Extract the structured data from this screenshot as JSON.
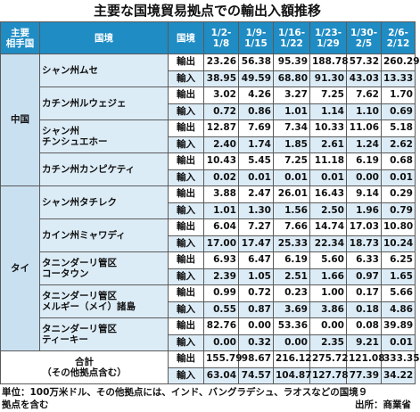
{
  "title": "主要な国境貿易拠点での輸出入額推移",
  "table": {
    "header": [
      [
        "主要",
        "相手国"
      ],
      [
        "国境"
      ],
      [
        "国境"
      ],
      [
        "1/2-",
        "1/8"
      ],
      [
        "1/9-",
        "1/15"
      ],
      [
        "1/16-",
        "1/22"
      ],
      [
        "1/23-",
        "1/29"
      ],
      [
        "1/30-",
        "2/5"
      ],
      [
        "2/6-",
        "2/12"
      ]
    ],
    "groups": [
      {
        "country": "中国",
        "sites": [
          {
            "name": [
              "シャン州ムセ"
            ],
            "rows": [
              {
                "type": "輸出",
                "values": [
                  "23.26",
                  "56.38",
                  "95.39",
                  "188.78",
                  "57.32",
                  "260.29"
                ]
              },
              {
                "type": "輸入",
                "values": [
                  "38.95",
                  "49.59",
                  "68.80",
                  "91.30",
                  "43.03",
                  "13.33"
                ]
              }
            ]
          },
          {
            "name": [
              "カチン州ルウェジェ"
            ],
            "rows": [
              {
                "type": "輸出",
                "values": [
                  "3.02",
                  "4.26",
                  "3.27",
                  "7.25",
                  "7.62",
                  "1.70"
                ]
              },
              {
                "type": "輸入",
                "values": [
                  "0.72",
                  "0.86",
                  "1.01",
                  "1.14",
                  "1.10",
                  "0.69"
                ]
              }
            ]
          },
          {
            "name": [
              "シャン州",
              "チンシュエホー"
            ],
            "rows": [
              {
                "type": "輸出",
                "values": [
                  "12.87",
                  "7.69",
                  "7.34",
                  "10.33",
                  "11.06",
                  "5.18"
                ]
              },
              {
                "type": "輸入",
                "values": [
                  "2.40",
                  "1.74",
                  "1.85",
                  "2.61",
                  "1.24",
                  "2.62"
                ]
              }
            ]
          },
          {
            "name": [
              "カチン州カンピケティ"
            ],
            "rows": [
              {
                "type": "輸出",
                "values": [
                  "10.43",
                  "5.45",
                  "7.25",
                  "11.18",
                  "6.19",
                  "0.68"
                ]
              },
              {
                "type": "輸入",
                "values": [
                  "0.02",
                  "0.01",
                  "0.01",
                  "0.01",
                  "0.00",
                  "0.01"
                ]
              }
            ]
          }
        ]
      },
      {
        "country": "タイ",
        "sites": [
          {
            "name": [
              "シャン州タチレク"
            ],
            "rows": [
              {
                "type": "輸出",
                "values": [
                  "3.88",
                  "2.47",
                  "26.01",
                  "16.43",
                  "9.14",
                  "0.29"
                ]
              },
              {
                "type": "輸入",
                "values": [
                  "1.01",
                  "1.30",
                  "1.56",
                  "2.50",
                  "1.96",
                  "0.79"
                ]
              }
            ]
          },
          {
            "name": [
              "カイン州ミャワディ"
            ],
            "rows": [
              {
                "type": "輸出",
                "values": [
                  "6.04",
                  "7.27",
                  "7.66",
                  "14.74",
                  "17.03",
                  "10.80"
                ]
              },
              {
                "type": "輸入",
                "values": [
                  "17.00",
                  "17.47",
                  "25.33",
                  "22.34",
                  "18.73",
                  "10.24"
                ]
              }
            ]
          },
          {
            "name": [
              "タニンダーリ管区",
              "コータウン"
            ],
            "rows": [
              {
                "type": "輸出",
                "values": [
                  "6.93",
                  "6.47",
                  "6.19",
                  "5.60",
                  "6.33",
                  "6.25"
                ]
              },
              {
                "type": "輸入",
                "values": [
                  "2.39",
                  "1.05",
                  "2.51",
                  "1.66",
                  "0.97",
                  "1.65"
                ]
              }
            ]
          },
          {
            "name": [
              "タニンダーリ管区",
              "メルギー（メイ）諸島"
            ],
            "rows": [
              {
                "type": "輸出",
                "values": [
                  "0.99",
                  "0.72",
                  "0.23",
                  "1.00",
                  "0.17",
                  "5.66"
                ]
              },
              {
                "type": "輸入",
                "values": [
                  "0.55",
                  "0.87",
                  "3.69",
                  "3.86",
                  "0.18",
                  "4.86"
                ]
              }
            ]
          },
          {
            "name": [
              "タニンダーリ管区",
              "ティーキー"
            ],
            "rows": [
              {
                "type": "輸出",
                "values": [
                  "82.76",
                  "0.00",
                  "53.36",
                  "0.00",
                  "0.08",
                  "39.89"
                ]
              },
              {
                "type": "輸入",
                "values": [
                  "0.00",
                  "0.32",
                  "0.00",
                  "2.35",
                  "9.21",
                  "0.01"
                ]
              }
            ]
          }
        ]
      }
    ],
    "total": {
      "name": [
        "合計",
        "（その他拠点含む）"
      ],
      "rows": [
        {
          "type": "輸出",
          "values": [
            "155.79",
            "98.67",
            "216.12",
            "275.72",
            "121.08",
            "333.35"
          ]
        },
        {
          "type": "輸入",
          "values": [
            "63.04",
            "74.57",
            "104.87",
            "127.78",
            "77.39",
            "34.22"
          ]
        }
      ]
    }
  },
  "footer": {
    "note": [
      "単位：100万米ドル、その他拠点には、インド、バングラデシュ、ラオスなどの国境９",
      "拠点を含む"
    ],
    "source": "出所：商業省"
  }
}
